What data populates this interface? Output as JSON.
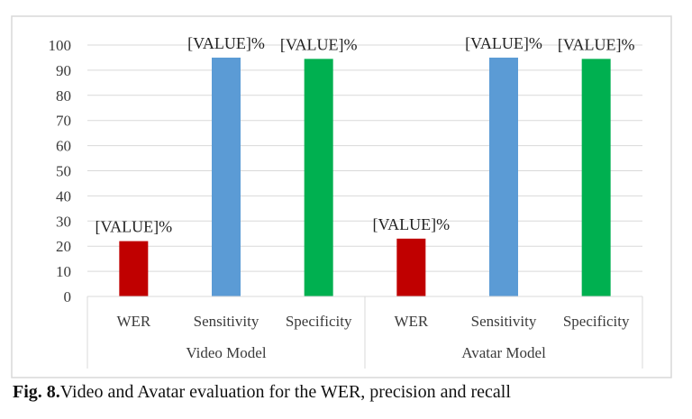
{
  "caption": {
    "label": "Fig. 8.",
    "text": "Video and Avatar evaluation for the WER, precision and recall"
  },
  "chart_data": {
    "type": "bar",
    "title": "",
    "xlabel": "",
    "ylabel": "",
    "ylim": [
      0,
      100
    ],
    "yticks": [
      0,
      10,
      20,
      30,
      40,
      50,
      60,
      70,
      80,
      90,
      100
    ],
    "grid": true,
    "legend": "none",
    "groups": [
      "Video Model",
      "Avatar Model"
    ],
    "categories": [
      "WER",
      "Sensitivity",
      "Specificity",
      "WER",
      "Sensitivity",
      "Specificity"
    ],
    "values": [
      22,
      95,
      94.5,
      23,
      95,
      94.5
    ],
    "data_labels": [
      "[VALUE]%",
      "[VALUE]%",
      "[VALUE]%",
      "[VALUE]%",
      "[VALUE]%",
      "[VALUE]%"
    ],
    "colors": [
      "#c00000",
      "#5b9bd5",
      "#00b050",
      "#c00000",
      "#5b9bd5",
      "#00b050"
    ],
    "border_color": "#d9d9d9",
    "grid_color": "#d9d9d9"
  }
}
